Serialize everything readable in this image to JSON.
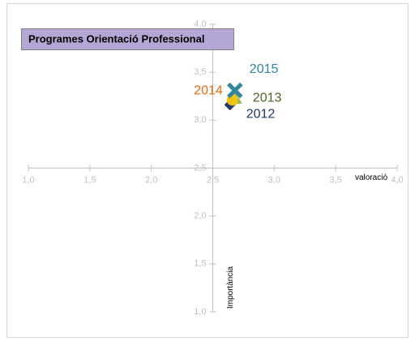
{
  "chart_data": {
    "type": "scatter",
    "title": "Programes Orientació Professional",
    "x_label": "valoració",
    "y_label": "Importància",
    "xlim": [
      1.0,
      4.0
    ],
    "ylim": [
      1.0,
      4.0
    ],
    "axis_cross": [
      2.5,
      2.5
    ],
    "xticks": [
      {
        "value": 1.0,
        "label": "1,0"
      },
      {
        "value": 1.5,
        "label": "1,5"
      },
      {
        "value": 2.0,
        "label": "2,0"
      },
      {
        "value": 2.5,
        "label": "2,5"
      },
      {
        "value": 3.0,
        "label": "3,0"
      },
      {
        "value": 3.5,
        "label": "3,5"
      },
      {
        "value": 4.0,
        "label": "4,0"
      }
    ],
    "yticks": [
      {
        "value": 1.0,
        "label": "1,0"
      },
      {
        "value": 1.5,
        "label": "1,5"
      },
      {
        "value": 2.0,
        "label": "2,0"
      },
      {
        "value": 2.5,
        "label": "2,5"
      },
      {
        "value": 3.0,
        "label": "3,0"
      },
      {
        "value": 3.5,
        "label": "3,5"
      },
      {
        "value": 4.0,
        "label": "4,0"
      }
    ],
    "series": [
      {
        "name": "2012",
        "color": "#1f3864",
        "label_color": "#1f3864",
        "marker": "diamond",
        "x": [
          2.64
        ],
        "values": [
          3.16
        ]
      },
      {
        "name": "2013",
        "color": "#9bbb59",
        "label_color": "#4f6228",
        "marker": "triangle",
        "x": [
          2.68
        ],
        "values": [
          3.23
        ]
      },
      {
        "name": "2014",
        "color": "#f2c314",
        "label_color": "#e46c0a",
        "marker": "circle",
        "x": [
          2.66
        ],
        "values": [
          3.21
        ]
      },
      {
        "name": "2015",
        "color": "#31859c",
        "label_color": "#31859c",
        "marker": "x",
        "x": [
          2.68
        ],
        "values": [
          3.31
        ]
      }
    ]
  }
}
